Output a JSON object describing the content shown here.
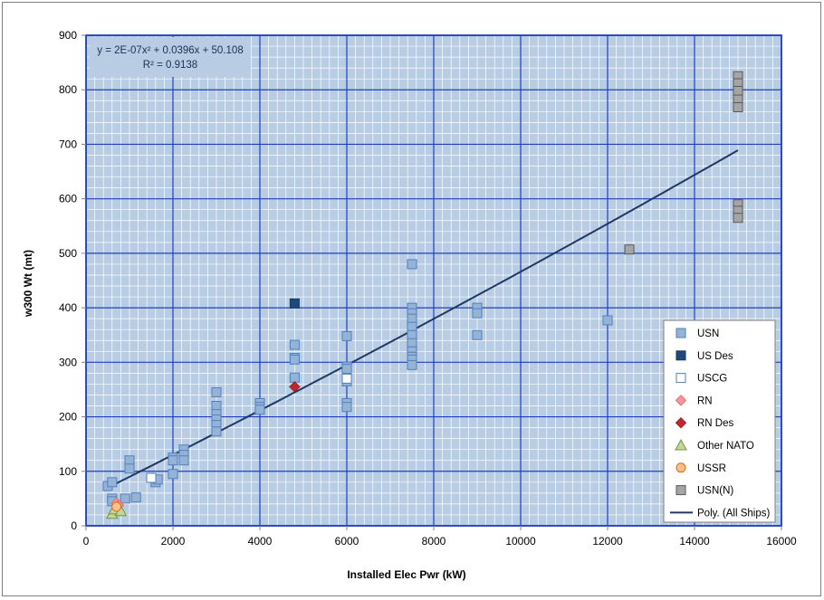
{
  "chart_data": {
    "type": "scatter",
    "title": "",
    "xlabel": "Installed Elec Pwr (kW)",
    "ylabel": "w300 Wt (mt)",
    "xlim": [
      0,
      16000
    ],
    "ylim": [
      0,
      900
    ],
    "xticks": [
      0,
      2000,
      4000,
      6000,
      8000,
      10000,
      12000,
      14000,
      16000
    ],
    "yticks": [
      0,
      100,
      200,
      300,
      400,
      500,
      600,
      700,
      800,
      900
    ],
    "grid": "major and minor",
    "legend_position": "bottom-right",
    "equation": {
      "line1": "y = 2E-07x² + 0.0396x + 50.108",
      "line2": "R² = 0.9138"
    },
    "colors": {
      "plot_background": "#b8cce4",
      "major_grid": "#1f3fbf",
      "minor_grid": "#ffffff",
      "trendline": "#1f3864"
    },
    "series": [
      {
        "name": "USN",
        "marker": "square",
        "fill": "#95b3d7",
        "stroke": "#4f81bd",
        "points": [
          [
            500,
            73
          ],
          [
            600,
            80
          ],
          [
            600,
            50
          ],
          [
            600,
            45
          ],
          [
            900,
            50
          ],
          [
            1000,
            120
          ],
          [
            1000,
            105
          ],
          [
            1150,
            52
          ],
          [
            1600,
            80
          ],
          [
            1650,
            85
          ],
          [
            2000,
            125
          ],
          [
            2000,
            120
          ],
          [
            2000,
            95
          ],
          [
            2250,
            140
          ],
          [
            2250,
            130
          ],
          [
            2250,
            120
          ],
          [
            3000,
            245
          ],
          [
            3000,
            220
          ],
          [
            3000,
            205
          ],
          [
            3000,
            195
          ],
          [
            3000,
            185
          ],
          [
            3000,
            173
          ],
          [
            4000,
            225
          ],
          [
            4000,
            218
          ],
          [
            4000,
            213
          ],
          [
            4800,
            332
          ],
          [
            4800,
            308
          ],
          [
            4800,
            305
          ],
          [
            4800,
            272
          ],
          [
            6000,
            348
          ],
          [
            6000,
            292
          ],
          [
            6000,
            288
          ],
          [
            6000,
            265
          ],
          [
            6000,
            225
          ],
          [
            6000,
            218
          ],
          [
            7500,
            480
          ],
          [
            7500,
            400
          ],
          [
            7500,
            390
          ],
          [
            7500,
            380
          ],
          [
            7500,
            365
          ],
          [
            7500,
            350
          ],
          [
            7500,
            335
          ],
          [
            7500,
            320
          ],
          [
            7500,
            310
          ],
          [
            7500,
            305
          ],
          [
            7500,
            295
          ],
          [
            9000,
            400
          ],
          [
            9000,
            390
          ],
          [
            9000,
            350
          ],
          [
            12000,
            377
          ]
        ]
      },
      {
        "name": "US Des",
        "marker": "square",
        "fill": "#1f497d",
        "stroke": "#17365d",
        "points": [
          [
            4800,
            408
          ]
        ]
      },
      {
        "name": "USCG",
        "marker": "square",
        "fill": "#ffffff",
        "stroke": "#4f81bd",
        "points": [
          [
            1500,
            88
          ],
          [
            6000,
            270
          ]
        ]
      },
      {
        "name": "RN",
        "marker": "diamond",
        "fill": "#f79696",
        "stroke": "#e46c6c",
        "points": [
          [
            700,
            42
          ],
          [
            750,
            38
          ]
        ]
      },
      {
        "name": "RN Des",
        "marker": "diamond",
        "fill": "#c0282d",
        "stroke": "#9b1c1f",
        "points": [
          [
            4800,
            255
          ]
        ]
      },
      {
        "name": "Other NATO",
        "marker": "triangle",
        "fill": "#c3d69b",
        "stroke": "#77933c",
        "points": [
          [
            600,
            22
          ],
          [
            650,
            30
          ],
          [
            800,
            27
          ]
        ]
      },
      {
        "name": "USSR",
        "marker": "circle",
        "fill": "#fac090",
        "stroke": "#e46c0a",
        "points": [
          [
            700,
            35
          ]
        ]
      },
      {
        "name": "USN(N)",
        "marker": "square",
        "fill": "#a5a5a5",
        "stroke": "#595959",
        "points": [
          [
            12500,
            507
          ],
          [
            15000,
            825
          ],
          [
            15000,
            812
          ],
          [
            15000,
            798
          ],
          [
            15000,
            782
          ],
          [
            15000,
            768
          ],
          [
            15000,
            590
          ],
          [
            15000,
            578
          ],
          [
            15000,
            565
          ]
        ]
      },
      {
        "name": "Poly. (All Ships)",
        "marker": "line",
        "stroke": "#1f3864",
        "x_range": [
          500,
          15000
        ]
      }
    ]
  }
}
